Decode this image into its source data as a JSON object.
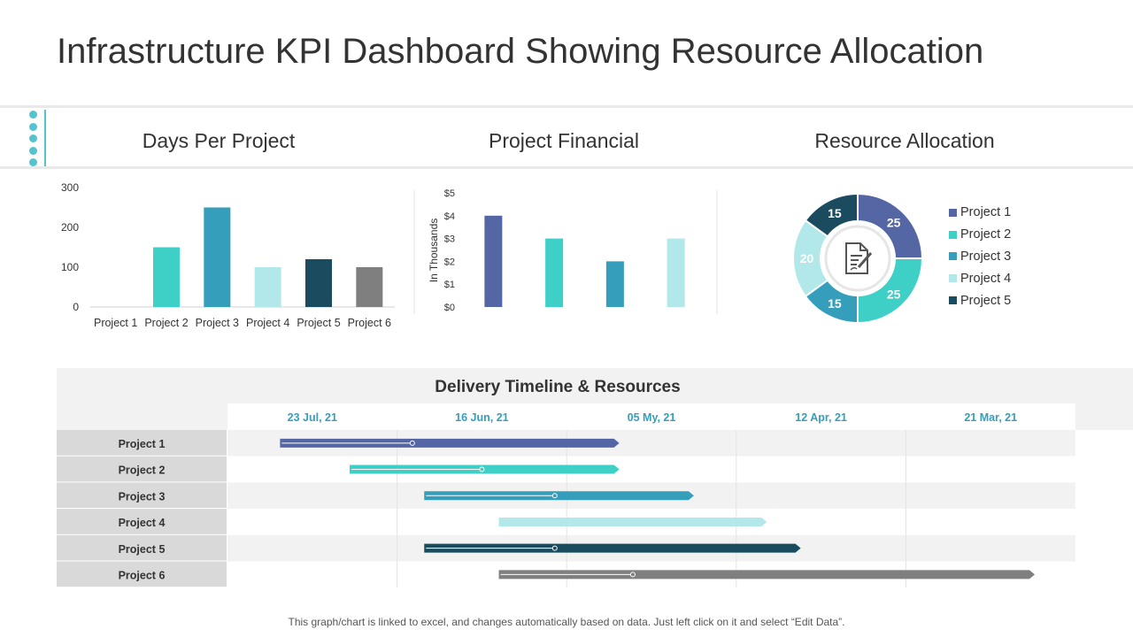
{
  "title": "Infrastructure KPI Dashboard Showing Resource Allocation",
  "headings": {
    "days": "Days Per Project",
    "financial": "Project Financial",
    "resource": "Resource Allocation"
  },
  "colors": {
    "p1": "#5566a4",
    "p2": "#3ecfc6",
    "p3": "#359ebb",
    "p4": "#b2e8ea",
    "p5": "#1a4b5e",
    "p6": "#7f7f7f",
    "accent": "#53c3cf"
  },
  "chart_data": [
    {
      "type": "bar",
      "title": "Days Per Project",
      "categories": [
        "Project 1",
        "Project 2",
        "Project 3",
        "Project 4",
        "Project 5",
        "Project 6"
      ],
      "values": [
        0,
        150,
        250,
        100,
        120,
        100
      ],
      "yticks": [
        "0",
        "100",
        "200",
        "300"
      ],
      "ylim": [
        0,
        300
      ],
      "grid": false
    },
    {
      "type": "bar",
      "title": "Project Financial",
      "ylabel": "In Thousands",
      "categories": [
        "",
        "",
        "",
        ""
      ],
      "values": [
        4,
        3,
        2,
        3
      ],
      "yticks": [
        "$0",
        "$1",
        "$2",
        "$3",
        "$4",
        "$5"
      ],
      "ylim": [
        0,
        5
      ],
      "grid": false
    },
    {
      "type": "pie",
      "title": "Resource Allocation",
      "labels": [
        "Project 1",
        "Project 2",
        "Project 3",
        "Project 4",
        "Project 5"
      ],
      "values": [
        25,
        25,
        15,
        20,
        15
      ],
      "legend": "right"
    },
    {
      "type": "table",
      "title": "Delivery Timeline & Resources",
      "columns": [
        "23 Jul, 21",
        "16 Jun, 21",
        "05 My, 21",
        "12 Apr, 21",
        "21 Mar, 21"
      ],
      "rows": [
        "Project 1",
        "Project 2",
        "Project 3",
        "Project 4",
        "Project 5",
        "Project 6"
      ],
      "bars": [
        {
          "start": 0.31,
          "end": 2.31,
          "marker": 1.09
        },
        {
          "start": 0.72,
          "end": 2.31,
          "marker": 1.5
        },
        {
          "start": 1.16,
          "end": 2.75,
          "marker": 1.93
        },
        {
          "start": 1.6,
          "end": 3.18,
          "marker": null
        },
        {
          "start": 1.16,
          "end": 3.38,
          "marker": 1.93
        },
        {
          "start": 1.6,
          "end": 4.76,
          "marker": 2.39
        }
      ]
    }
  ],
  "footer": "This graph/chart is linked to excel, and changes automatically based on data. Just left click on it and select “Edit Data”."
}
